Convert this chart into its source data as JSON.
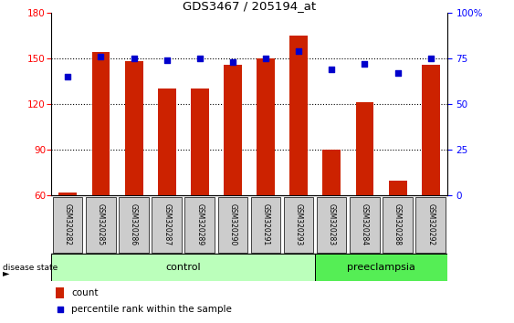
{
  "title": "GDS3467 / 205194_at",
  "samples": [
    "GSM320282",
    "GSM320285",
    "GSM320286",
    "GSM320287",
    "GSM320289",
    "GSM320290",
    "GSM320291",
    "GSM320293",
    "GSM320283",
    "GSM320284",
    "GSM320288",
    "GSM320292"
  ],
  "bar_heights": [
    62,
    154,
    148,
    130,
    130,
    146,
    150,
    165,
    90,
    121,
    70,
    146
  ],
  "percentile_values": [
    65,
    76,
    75,
    74,
    75,
    73,
    75,
    79,
    69,
    72,
    67,
    75
  ],
  "bar_color": "#cc2200",
  "dot_color": "#0000cc",
  "ylim_left": [
    60,
    180
  ],
  "ylim_right": [
    0,
    100
  ],
  "yticks_left": [
    60,
    90,
    120,
    150,
    180
  ],
  "yticks_right": [
    0,
    25,
    50,
    75,
    100
  ],
  "control_count": 8,
  "preeclampsia_count": 4,
  "control_color": "#bbffbb",
  "preeclampsia_color": "#55ee55",
  "label_bg_color": "#cccccc",
  "legend_count_label": "count",
  "legend_percentile_label": "percentile rank within the sample",
  "grid_yticks": [
    90,
    120,
    150
  ]
}
